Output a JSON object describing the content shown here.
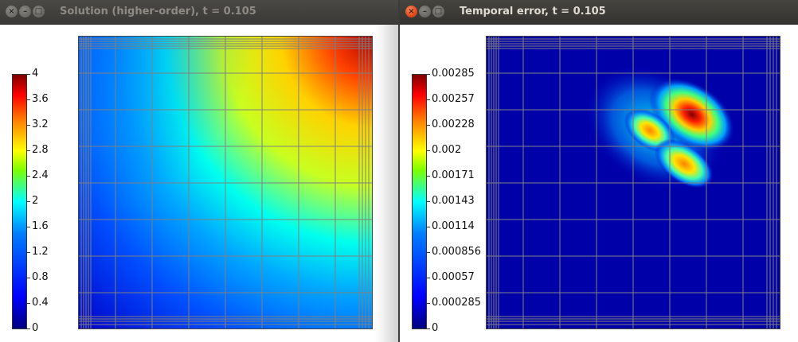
{
  "windows": [
    {
      "title": "Solution (higher-order), t = 0.105",
      "colorbar_ticks": [
        "4",
        "3.6",
        "3.2",
        "2.8",
        "2.4",
        "2",
        "1.6",
        "1.2",
        "0.8",
        "0.4",
        "0"
      ]
    },
    {
      "title": "Temporal error, t = 0.105",
      "colorbar_ticks": [
        "0.00285",
        "0.00257",
        "0.00228",
        "0.002",
        "0.00171",
        "0.00143",
        "0.00114",
        "0.000856",
        "0.00057",
        "0.000285",
        "0"
      ]
    }
  ],
  "icons": {
    "close": "close-icon",
    "minimize": "minimize-icon",
    "maximize": "maximize-icon"
  },
  "colors": {
    "titlebar": "#3c3b37",
    "close_active": "#df4a16",
    "grid": "#808080",
    "jet_low": "#00007f",
    "jet_high": "#7f0000"
  }
}
